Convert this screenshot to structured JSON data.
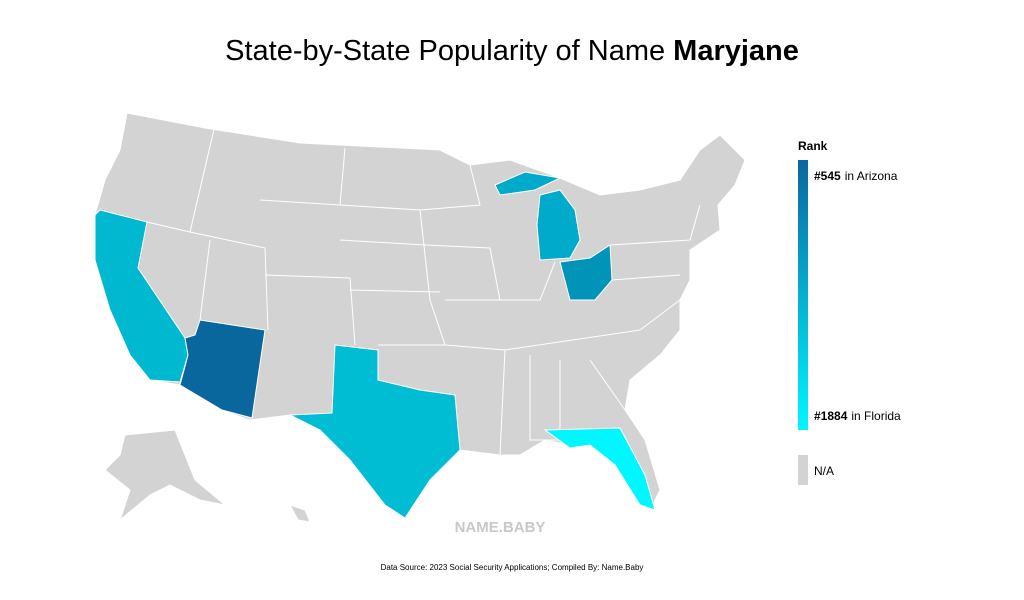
{
  "title": {
    "text": "State-by-State Popularity of Name",
    "name": "Maryjane"
  },
  "legend": {
    "title": "Rank",
    "top": {
      "rank": "#545",
      "place": "in Arizona"
    },
    "bottom": {
      "rank": "#1884",
      "place": "in Florida"
    },
    "colors": [
      "#0a679e",
      "#00f7ff"
    ],
    "na_label": "N/A",
    "na_color": "#d3d3d3"
  },
  "watermark": "NAME.BABY",
  "source": "Data Source: 2023 Social Security Applications; Compiled By: Name.Baby"
}
